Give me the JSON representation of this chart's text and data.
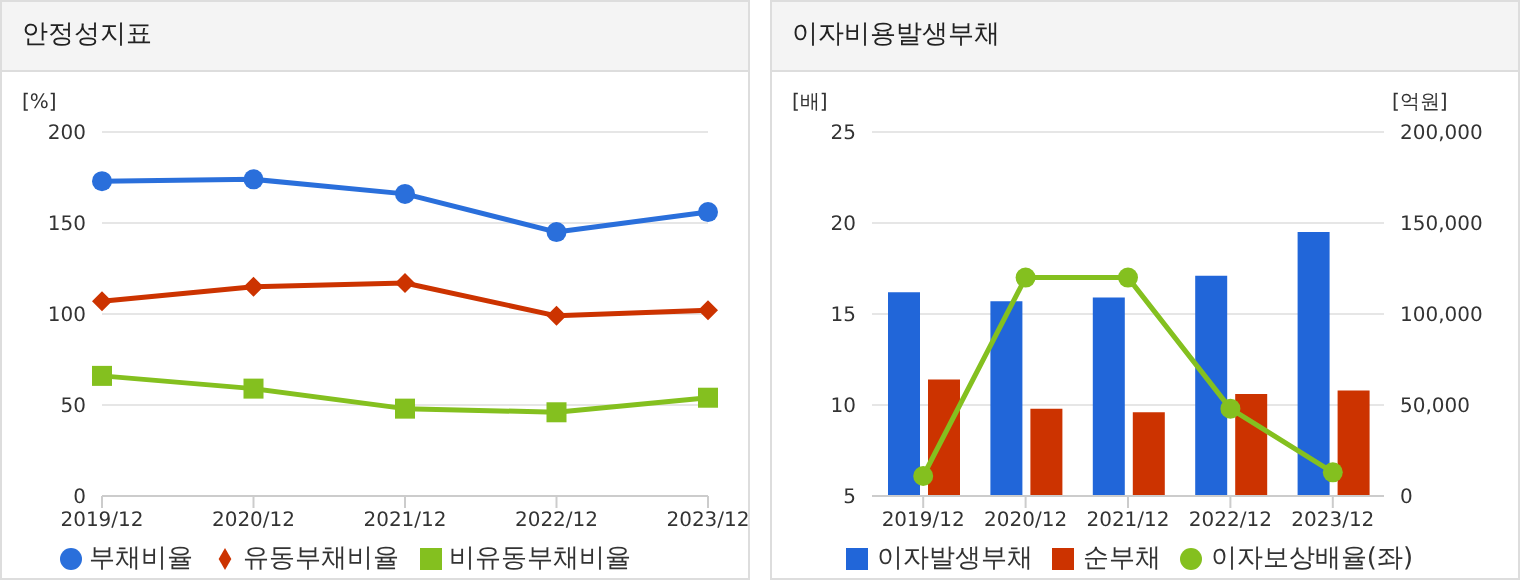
{
  "chart_data": [
    {
      "type": "line",
      "title": "안정성지표",
      "ylabel": "[%]",
      "categories": [
        "2019/12",
        "2020/12",
        "2021/12",
        "2022/12",
        "2023/12"
      ],
      "ylim": [
        0,
        200
      ],
      "yticks": [
        0,
        50,
        100,
        150,
        200
      ],
      "grid": "y",
      "legend": "bottom",
      "series": [
        {
          "name": "부채비율",
          "color": "#2a6fdb",
          "marker": "circle",
          "values": [
            173,
            174,
            166,
            145,
            156
          ]
        },
        {
          "name": "유동부채비율",
          "color": "#cc3300",
          "marker": "diamond",
          "values": [
            107,
            115,
            117,
            99,
            102
          ]
        },
        {
          "name": "비유동부채비율",
          "color": "#84c01f",
          "marker": "square",
          "values": [
            66,
            59,
            48,
            46,
            54
          ]
        }
      ]
    },
    {
      "type": "bar",
      "title": "이자비용발생부채",
      "ylabel": "[배]",
      "y2label": "[억원]",
      "categories": [
        "2019/12",
        "2020/12",
        "2021/12",
        "2022/12",
        "2023/12"
      ],
      "ylim": [
        5,
        25
      ],
      "yticks": [
        5,
        10,
        15,
        20,
        25
      ],
      "y2lim": [
        0,
        200000
      ],
      "y2ticks": [
        0,
        {
          "value": 50000,
          "label": "50,000"
        },
        {
          "value": 100000,
          "label": "100,000"
        },
        {
          "value": 150000,
          "label": "150,000"
        },
        {
          "value": 200000,
          "label": "200,000"
        }
      ],
      "grid": "y",
      "legend": "bottom",
      "series": [
        {
          "name": "이자발생부채",
          "color": "#2166d9",
          "axis": "y2",
          "values": [
            112000,
            107000,
            109000,
            121000,
            145000
          ]
        },
        {
          "name": "순부채",
          "color": "#cc3300",
          "axis": "y2",
          "values": [
            64000,
            48000,
            46000,
            56000,
            58000
          ]
        },
        {
          "name": "이자보상배율(좌)",
          "type": "line",
          "color": "#84c01f",
          "marker": "circle",
          "values": [
            6.1,
            17.0,
            17.0,
            9.8,
            6.3
          ]
        }
      ]
    }
  ]
}
